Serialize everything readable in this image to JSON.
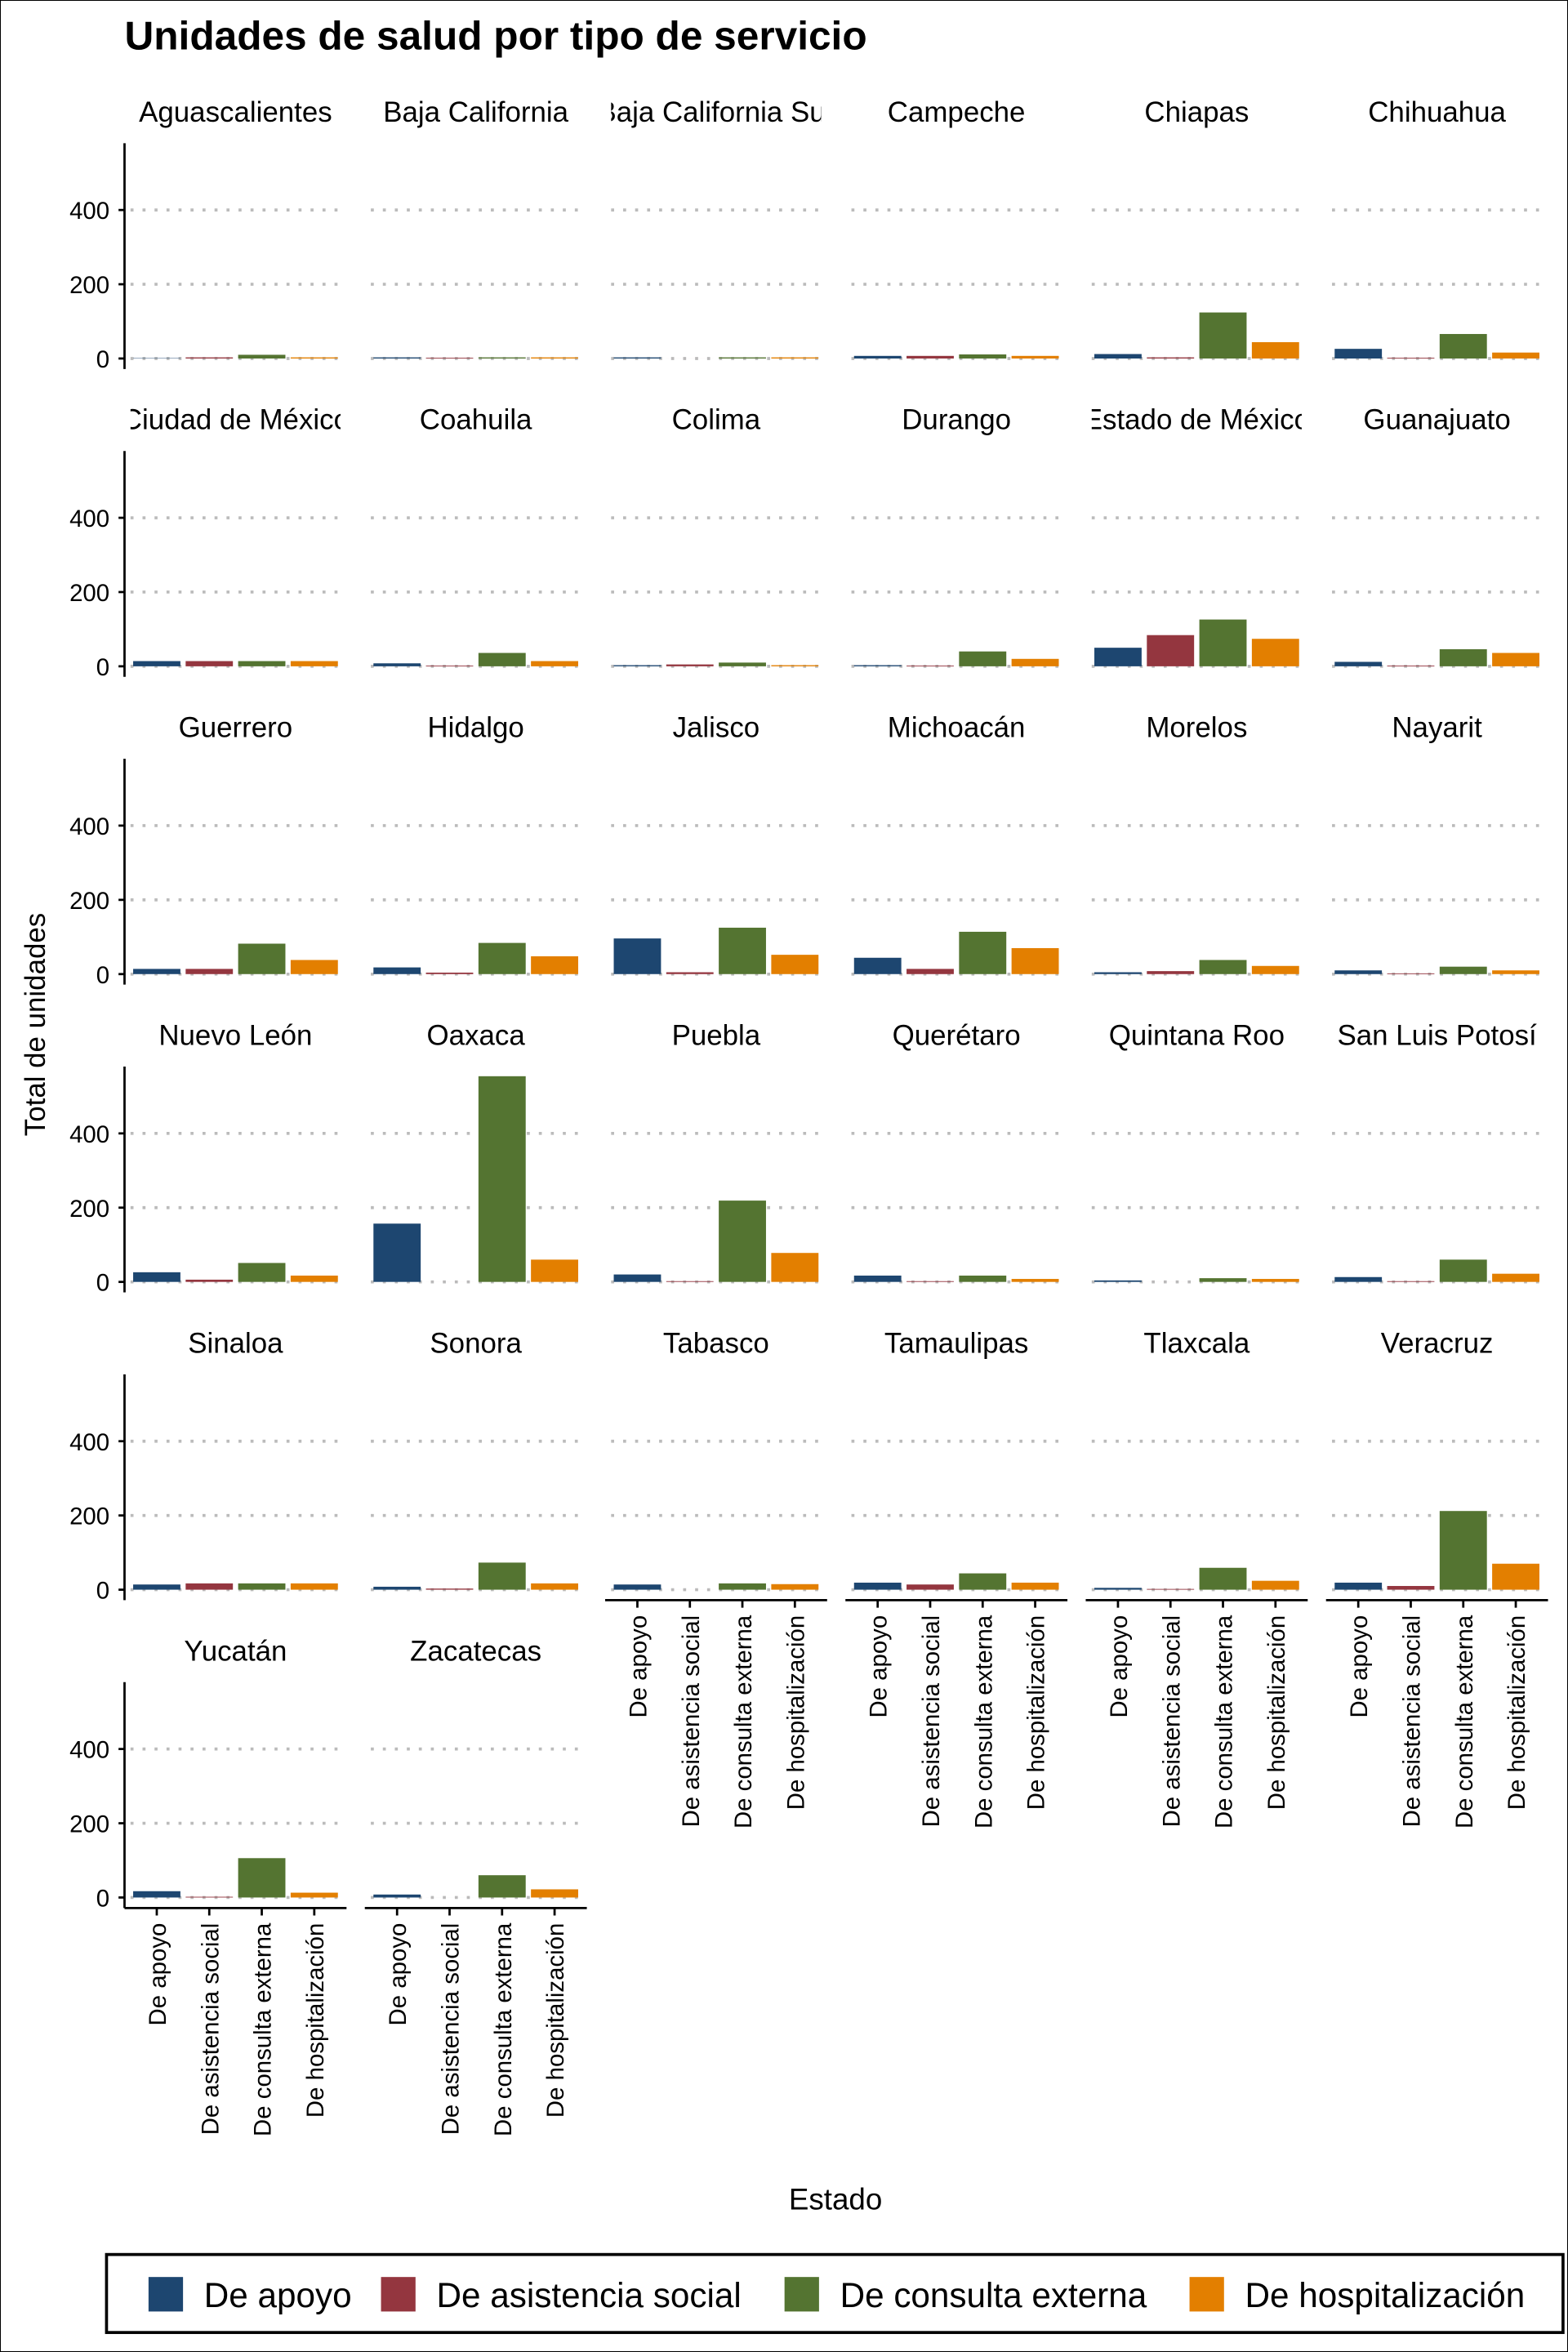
{
  "chart_data": {
    "type": "bar",
    "layout": "facet grid, 6 columns",
    "title": "Unidades de salud por tipo de servicio",
    "xlabel": "Estado",
    "ylabel": "Total de unidades",
    "ylim": [
      0,
      580
    ],
    "yticks": [
      0,
      200,
      400
    ],
    "grid": "horizontal dotted",
    "legend_position": "bottom",
    "categories": [
      "De apoyo",
      "De asistencia social",
      "De consulta externa",
      "De hospitalización"
    ],
    "colors": [
      "#1d4670",
      "#94363f",
      "#547431",
      "#e37f00"
    ],
    "panels": [
      {
        "name": "Aguascalientes",
        "values": [
          1,
          3,
          10,
          3
        ]
      },
      {
        "name": "Baja California",
        "values": [
          3,
          2,
          3,
          3
        ]
      },
      {
        "name": "Baja California Sur",
        "values": [
          3,
          0,
          3,
          3
        ]
      },
      {
        "name": "Campeche",
        "values": [
          7,
          7,
          11,
          7
        ]
      },
      {
        "name": "Chiapas",
        "values": [
          12,
          3,
          124,
          44
        ]
      },
      {
        "name": "Chihuahua",
        "values": [
          26,
          2,
          66,
          16
        ]
      },
      {
        "name": "Ciudad de México",
        "values": [
          14,
          14,
          14,
          14
        ]
      },
      {
        "name": "Coahuila",
        "values": [
          8,
          2,
          36,
          14
        ]
      },
      {
        "name": "Colima",
        "values": [
          3,
          5,
          10,
          3
        ]
      },
      {
        "name": "Durango",
        "values": [
          3,
          2,
          40,
          20
        ]
      },
      {
        "name": "Estado de México",
        "values": [
          50,
          84,
          126,
          74
        ]
      },
      {
        "name": "Guanajuato",
        "values": [
          12,
          2,
          46,
          36
        ]
      },
      {
        "name": "Guerrero",
        "values": [
          14,
          14,
          82,
          38
        ]
      },
      {
        "name": "Hidalgo",
        "values": [
          18,
          4,
          84,
          48
        ]
      },
      {
        "name": "Jalisco",
        "values": [
          96,
          5,
          125,
          52
        ]
      },
      {
        "name": "Michoacán",
        "values": [
          44,
          14,
          114,
          70
        ]
      },
      {
        "name": "Morelos",
        "values": [
          5,
          8,
          38,
          22
        ]
      },
      {
        "name": "Nayarit",
        "values": [
          10,
          2,
          20,
          10
        ]
      },
      {
        "name": "Nuevo León",
        "values": [
          26,
          6,
          51,
          17
        ]
      },
      {
        "name": "Oaxaca",
        "values": [
          157,
          0,
          554,
          60
        ]
      },
      {
        "name": "Puebla",
        "values": [
          20,
          2,
          219,
          78
        ]
      },
      {
        "name": "Querétaro",
        "values": [
          17,
          2,
          17,
          8
        ]
      },
      {
        "name": "Quintana Roo",
        "values": [
          4,
          0,
          10,
          8
        ]
      },
      {
        "name": "San Luis Potosí",
        "values": [
          13,
          2,
          60,
          22
        ]
      },
      {
        "name": "Sinaloa",
        "values": [
          14,
          17,
          17,
          17
        ]
      },
      {
        "name": "Sonora",
        "values": [
          8,
          3,
          73,
          17
        ]
      },
      {
        "name": "Tabasco",
        "values": [
          14,
          0,
          17,
          15
        ]
      },
      {
        "name": "Tamaulipas",
        "values": [
          19,
          14,
          44,
          19
        ]
      },
      {
        "name": "Tlaxcala",
        "values": [
          5,
          2,
          59,
          24
        ]
      },
      {
        "name": "Veracruz",
        "values": [
          19,
          10,
          212,
          70
        ]
      },
      {
        "name": "Yucatán",
        "values": [
          17,
          2,
          106,
          13
        ]
      },
      {
        "name": "Zacatecas",
        "values": [
          8,
          0,
          60,
          22
        ]
      }
    ]
  }
}
